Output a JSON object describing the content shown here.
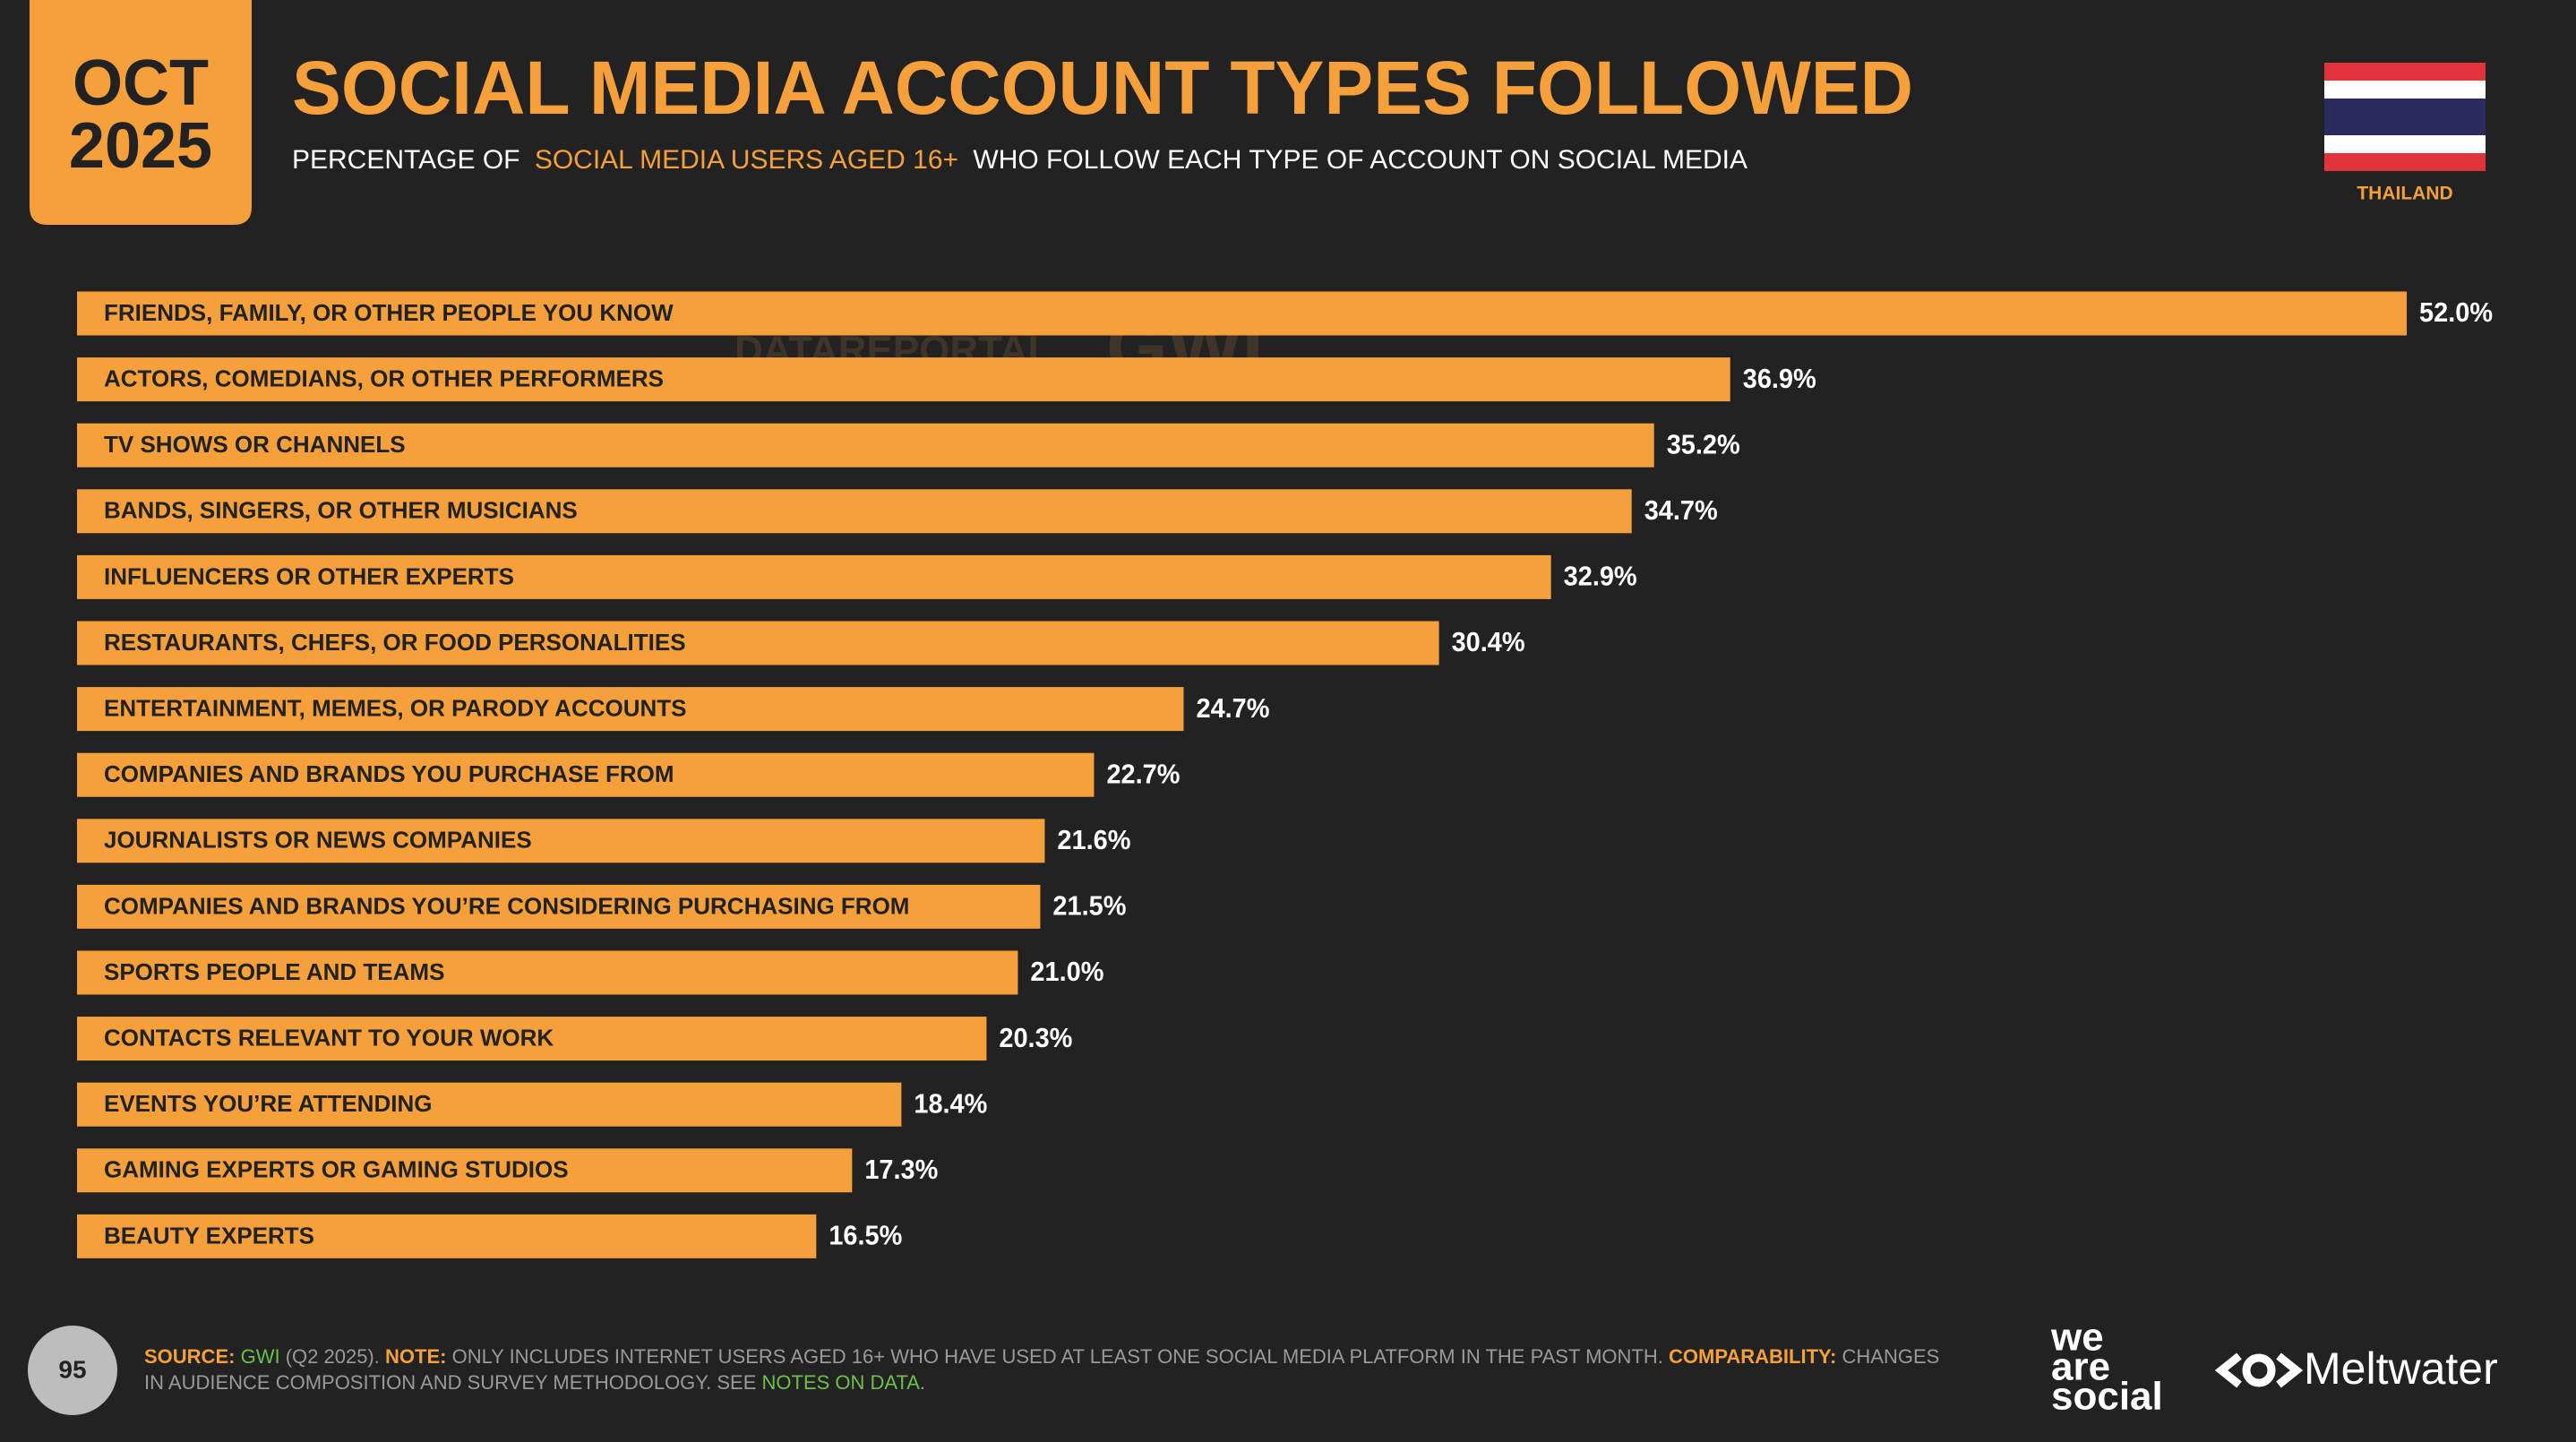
{
  "header": {
    "date_month": "OCT",
    "date_year": "2025",
    "title": "SOCIAL MEDIA ACCOUNT TYPES FOLLOWED",
    "subtitle_parts": [
      "PERCENTAGE OF",
      "SOCIAL MEDIA USERS AGED 16+",
      "WHO FOLLOW EACH TYPE OF ACCOUNT ON SOCIAL MEDIA"
    ],
    "country": "THAILAND"
  },
  "watermark": [
    "DATAREPORTAL",
    "GWI."
  ],
  "chart_data": {
    "type": "bar",
    "orientation": "horizontal",
    "categories": [
      "FRIENDS, FAMILY, OR OTHER PEOPLE YOU KNOW",
      "ACTORS, COMEDIANS, OR OTHER PERFORMERS",
      "TV SHOWS OR CHANNELS",
      "BANDS, SINGERS, OR OTHER MUSICIANS",
      "INFLUENCERS OR OTHER EXPERTS",
      "RESTAURANTS, CHEFS, OR FOOD PERSONALITIES",
      "ENTERTAINMENT, MEMES, OR PARODY ACCOUNTS",
      "COMPANIES AND BRANDS YOU PURCHASE FROM",
      "JOURNALISTS OR NEWS COMPANIES",
      "COMPANIES AND BRANDS YOU’RE CONSIDERING PURCHASING FROM",
      "SPORTS PEOPLE AND TEAMS",
      "CONTACTS RELEVANT TO YOUR WORK",
      "EVENTS YOU’RE ATTENDING",
      "GAMING EXPERTS OR GAMING STUDIOS",
      "BEAUTY EXPERTS"
    ],
    "values": [
      52.0,
      36.9,
      35.2,
      34.7,
      32.9,
      30.4,
      24.7,
      22.7,
      21.6,
      21.5,
      21.0,
      20.3,
      18.4,
      17.3,
      16.5
    ],
    "value_labels": [
      "52.0%",
      "36.9%",
      "35.2%",
      "34.7%",
      "32.9%",
      "30.4%",
      "24.7%",
      "22.7%",
      "21.6%",
      "21.5%",
      "21.0%",
      "20.3%",
      "18.4%",
      "17.3%",
      "16.5%"
    ],
    "color": "#f5a03b"
  },
  "footer": {
    "page": "95",
    "source_label": "SOURCE:",
    "source": "GWI",
    "source_detail": "(Q2 2025).",
    "note_label": "NOTE:",
    "note": "ONLY INCLUDES INTERNET USERS AGED 16+ WHO HAVE USED AT LEAST ONE SOCIAL MEDIA PLATFORM IN THE PAST MONTH.",
    "comparability_label": "COMPARABILITY:",
    "comparability": "CHANGES IN AUDIENCE COMPOSITION AND SURVEY METHODOLOGY. SEE",
    "link": "NOTES ON DATA",
    "end": "."
  },
  "logos": {
    "we_are_social": [
      "we",
      "are",
      "social"
    ],
    "meltwater": "Meltwater"
  }
}
